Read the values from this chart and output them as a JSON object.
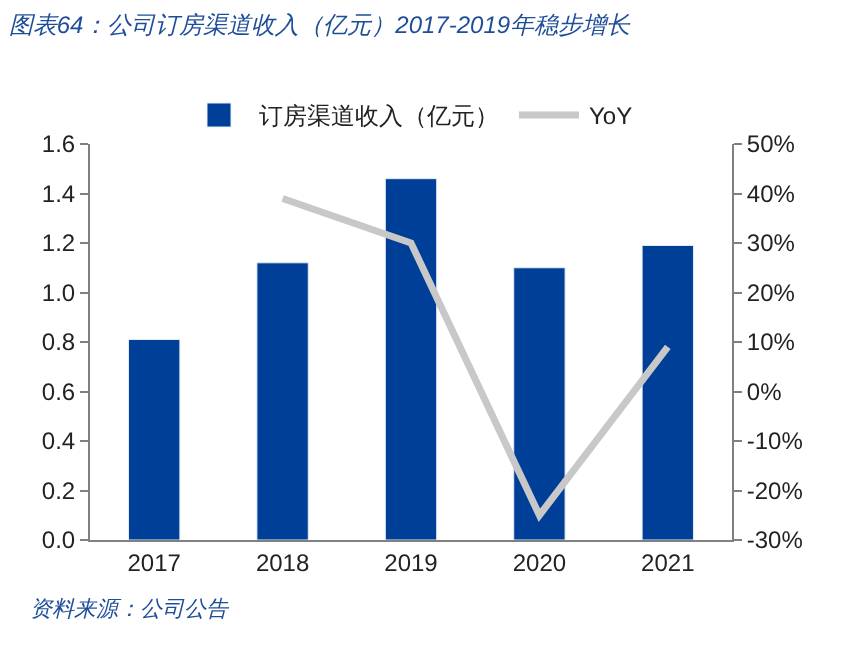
{
  "chart_data": {
    "type": "bar",
    "title": "图表64：公司订房渠道收入（亿元）2017-2019年稳步增长",
    "categories": [
      "2017",
      "2018",
      "2019",
      "2020",
      "2021"
    ],
    "series": [
      {
        "name": "订房渠道收入（亿元）",
        "color": "#003f98",
        "values": [
          0.81,
          1.12,
          1.46,
          1.1,
          1.19
        ]
      },
      {
        "name": "YoY",
        "type": "line",
        "axis": "y2",
        "color": "#c8c8c8",
        "values": [
          null,
          39,
          30,
          -25,
          9
        ]
      }
    ],
    "ylim": [
      0,
      1.6
    ],
    "yticks": [
      {
        "value": 0,
        "label": "0.0"
      },
      {
        "value": 0.2,
        "label": "0.2"
      },
      {
        "value": 0.4,
        "label": "0.4"
      },
      {
        "value": 0.6,
        "label": "0.6"
      },
      {
        "value": 0.8,
        "label": "0.8"
      },
      {
        "value": 1,
        "label": "1.0"
      },
      {
        "value": 1.2,
        "label": "1.2"
      },
      {
        "value": 1.4,
        "label": "1.4"
      },
      {
        "value": 1.6,
        "label": "1.6"
      }
    ],
    "y2lim": [
      -30,
      50
    ],
    "y2ticks": [
      {
        "value": -30,
        "label": "-30%"
      },
      {
        "value": -20,
        "label": "-20%"
      },
      {
        "value": -10,
        "label": "-10%"
      },
      {
        "value": 0,
        "label": "0%"
      },
      {
        "value": 10,
        "label": "10%"
      },
      {
        "value": 20,
        "label": "20%"
      },
      {
        "value": 30,
        "label": "30%"
      },
      {
        "value": 40,
        "label": "40%"
      },
      {
        "value": 50,
        "label": "50%"
      }
    ],
    "legend": "top",
    "marker": "none",
    "line_style": "solid",
    "annotations": [
      "资料来源：公司公告"
    ]
  }
}
